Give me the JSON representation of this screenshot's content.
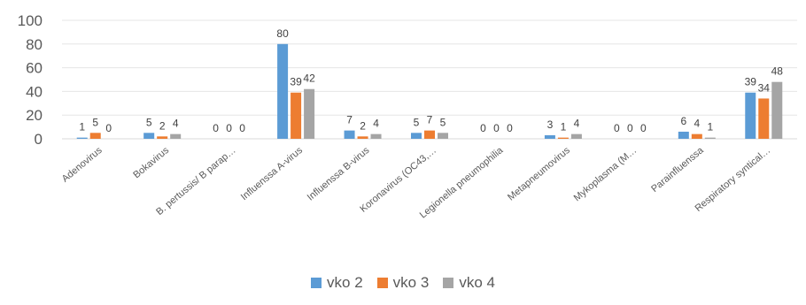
{
  "chart_data": {
    "type": "bar",
    "categories": [
      "Adenovirus",
      "Bokavirus",
      "B. pertussis/ B parap…",
      "Influenssa A-virus",
      "Influenssa B-virus",
      "Koronavirus (OC43,…",
      "Legionella pneumophilia",
      "Metapneumovirus",
      "Mykoplasma (M…",
      "Parainfluenssa",
      "Respiratory syntical…"
    ],
    "series": [
      {
        "name": "vko 2",
        "color": "#5B9BD5",
        "values": [
          1,
          5,
          0,
          80,
          7,
          5,
          0,
          3,
          0,
          6,
          39
        ]
      },
      {
        "name": "vko 3",
        "color": "#ED7D31",
        "values": [
          5,
          2,
          0,
          39,
          2,
          7,
          0,
          1,
          0,
          4,
          34
        ]
      },
      {
        "name": "vko 4",
        "color": "#A5A5A5",
        "values": [
          0,
          4,
          0,
          42,
          4,
          5,
          0,
          4,
          0,
          1,
          48
        ]
      }
    ],
    "yticks": [
      "0",
      "20",
      "40",
      "60",
      "80",
      "100"
    ],
    "ylim": [
      0,
      100
    ],
    "grid": true,
    "legend_position": "bottom"
  }
}
